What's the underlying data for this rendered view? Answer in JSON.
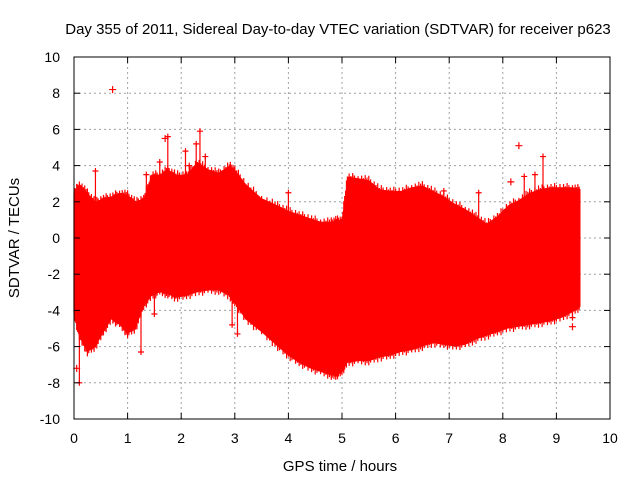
{
  "chart_data": {
    "type": "scatter",
    "title": "Day 355 of 2011, Sidereal Day-to-day VTEC variation (SDTVAR) for receiver p623",
    "xlabel": "GPS time / hours",
    "ylabel": "SDTVAR / TECUs",
    "xlim": [
      0,
      10
    ],
    "ylim": [
      -10,
      10
    ],
    "x_ticks": [
      0,
      1,
      2,
      3,
      4,
      5,
      6,
      7,
      8,
      9,
      10
    ],
    "y_ticks": [
      -10,
      -8,
      -6,
      -4,
      -2,
      0,
      2,
      4,
      6,
      8,
      10
    ],
    "grid": true,
    "marker": "+",
    "color": "#ff0000",
    "series": [
      {
        "name": "SDTVAR",
        "envelope": {
          "x": [
            0.0,
            0.1,
            0.25,
            0.4,
            0.55,
            0.7,
            0.85,
            1.0,
            1.15,
            1.3,
            1.45,
            1.6,
            1.75,
            1.9,
            2.1,
            2.3,
            2.5,
            2.7,
            2.9,
            3.0,
            3.2,
            3.5,
            3.8,
            4.0,
            4.2,
            4.4,
            4.6,
            4.8,
            4.9,
            5.0,
            5.1,
            5.3,
            5.5,
            5.7,
            5.9,
            6.1,
            6.3,
            6.5,
            6.7,
            6.9,
            7.1,
            7.3,
            7.5,
            7.7,
            7.9,
            8.1,
            8.3,
            8.5,
            8.7,
            8.9,
            9.1,
            9.3,
            9.45
          ],
          "upper": [
            2.5,
            3.0,
            2.5,
            2.0,
            2.2,
            2.3,
            2.5,
            2.4,
            2.0,
            2.2,
            3.5,
            3.5,
            3.8,
            3.5,
            3.5,
            4.2,
            3.8,
            3.6,
            4.0,
            3.8,
            3.0,
            2.2,
            1.8,
            1.5,
            1.3,
            1.1,
            0.9,
            0.9,
            1.0,
            1.0,
            3.4,
            3.3,
            3.2,
            2.7,
            2.6,
            2.6,
            2.8,
            2.9,
            2.6,
            2.3,
            1.9,
            1.6,
            1.2,
            0.8,
            1.2,
            1.8,
            2.1,
            2.5,
            2.7,
            2.8,
            2.8,
            2.8,
            2.7
          ],
          "lower": [
            -4.2,
            -5.5,
            -6.3,
            -6.0,
            -5.2,
            -4.5,
            -4.8,
            -5.3,
            -5.0,
            -3.8,
            -3.2,
            -3.0,
            -3.1,
            -3.3,
            -3.2,
            -3.0,
            -2.9,
            -2.9,
            -3.2,
            -3.6,
            -4.5,
            -5.2,
            -6.0,
            -6.5,
            -6.9,
            -7.2,
            -7.4,
            -7.6,
            -7.6,
            -7.4,
            -6.9,
            -6.8,
            -6.8,
            -6.6,
            -6.5,
            -6.3,
            -6.2,
            -6.0,
            -5.8,
            -5.9,
            -6.0,
            -5.9,
            -5.6,
            -5.4,
            -5.2,
            -5.0,
            -4.9,
            -4.8,
            -4.7,
            -4.6,
            -4.4,
            -4.1,
            -3.8
          ]
        },
        "spikes": [
          {
            "x": 0.4,
            "high": 3.7
          },
          {
            "x": 1.35,
            "high": 3.5
          },
          {
            "x": 1.6,
            "high": 4.2
          },
          {
            "x": 1.75,
            "high": 5.6
          },
          {
            "x": 2.08,
            "high": 4.8
          },
          {
            "x": 2.15,
            "high": 4.0
          },
          {
            "x": 2.28,
            "high": 5.2
          },
          {
            "x": 2.35,
            "high": 5.9
          },
          {
            "x": 2.45,
            "high": 4.5
          },
          {
            "x": 4.0,
            "high": 2.5
          },
          {
            "x": 5.2,
            "high": 3.3
          },
          {
            "x": 6.9,
            "high": 2.6
          },
          {
            "x": 7.55,
            "high": 2.5
          },
          {
            "x": 8.4,
            "high": 3.4
          },
          {
            "x": 8.6,
            "high": 3.5
          },
          {
            "x": 8.75,
            "high": 4.5
          },
          {
            "x": 9.35,
            "high": 2.5
          },
          {
            "x": 1.25,
            "low": -6.3
          },
          {
            "x": 2.95,
            "low": -4.8
          },
          {
            "x": 3.05,
            "low": -5.3
          },
          {
            "x": 1.5,
            "low": -4.2
          },
          {
            "x": 0.1,
            "low": -8.0
          },
          {
            "x": 9.3,
            "low": -4.4
          }
        ],
        "outliers": [
          {
            "x": 0.72,
            "y": 8.2
          },
          {
            "x": 8.3,
            "y": 5.1
          },
          {
            "x": 9.3,
            "y": -4.9
          },
          {
            "x": 0.05,
            "y": -7.2
          },
          {
            "x": 8.15,
            "y": 3.1
          },
          {
            "x": 1.7,
            "y": 5.5
          }
        ]
      }
    ]
  }
}
